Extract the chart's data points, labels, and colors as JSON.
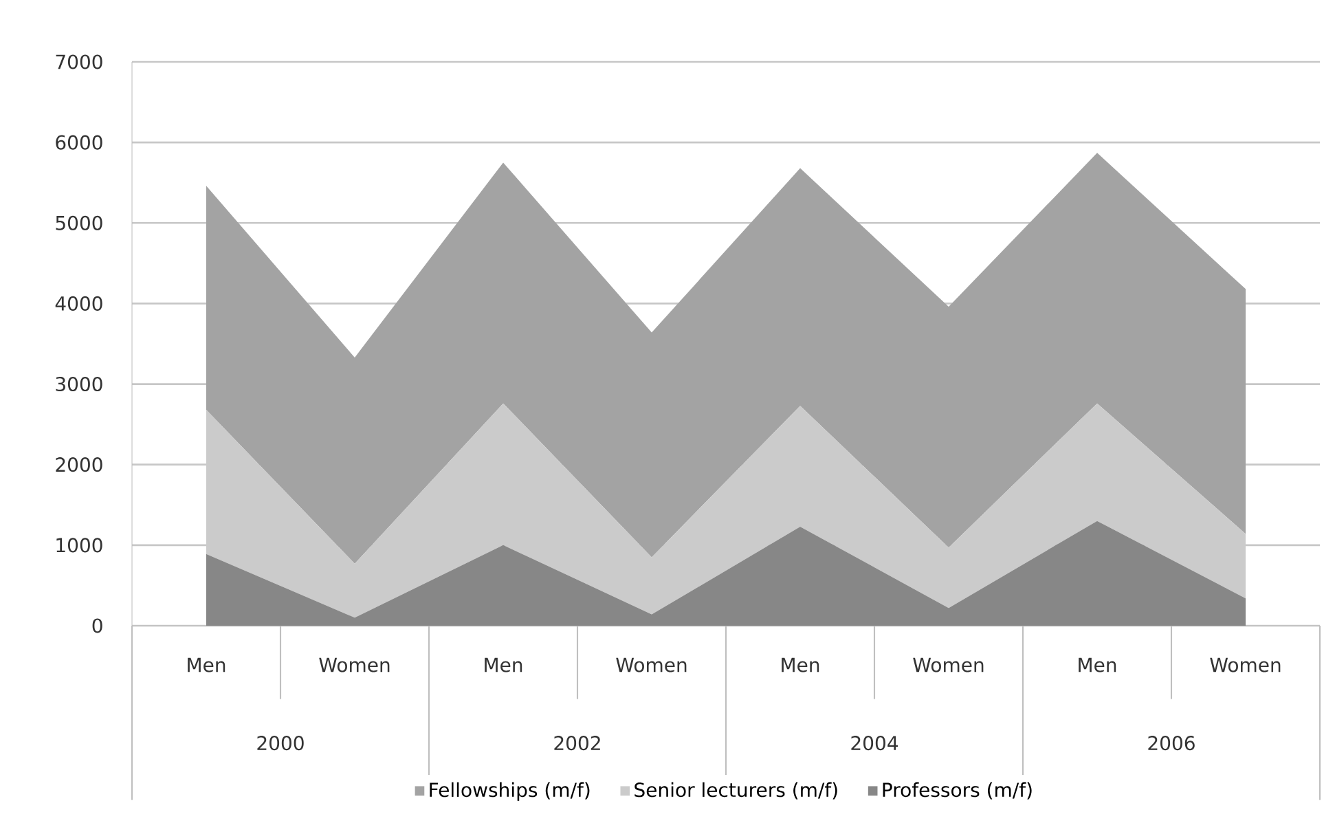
{
  "chart_data": {
    "type": "area",
    "stacked": true,
    "categories": [
      "Men",
      "Women",
      "Men",
      "Women",
      "Men",
      "Women",
      "Men",
      "Women"
    ],
    "annotations": [
      "2000",
      "2002",
      "2004",
      "2006"
    ],
    "series": [
      {
        "name": "Professors (m/f)",
        "color": "#878787",
        "values": [
          890,
          100,
          1000,
          140,
          1230,
          220,
          1300,
          340
        ]
      },
      {
        "name": "Senior lecturers (m/f)",
        "color": "#cbcbcb",
        "values": [
          1790,
          670,
          1760,
          710,
          1500,
          750,
          1460,
          800
        ]
      },
      {
        "name": "Fellowships (m/f)",
        "color": "#a3a3a3",
        "values": [
          2780,
          2560,
          2990,
          2790,
          2950,
          2990,
          3110,
          3040
        ]
      }
    ],
    "ylim": [
      0,
      7000
    ],
    "yticks": [
      0,
      1000,
      2000,
      3000,
      4000,
      5000,
      6000,
      7000
    ],
    "grid": "y",
    "legend": "bottom"
  }
}
